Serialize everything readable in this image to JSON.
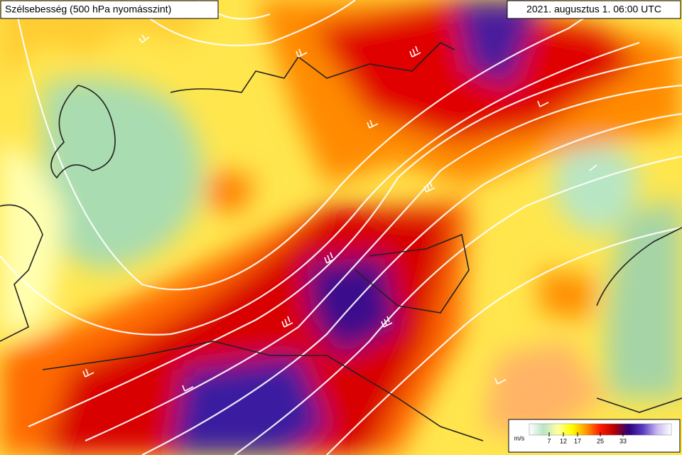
{
  "title": "Szélsebesség (500 hPa nyomásszint)",
  "timestamp": "2021. augusztus 1. 06:00 UTC",
  "legend": {
    "unit": "m/s",
    "lim": [
      0,
      50
    ],
    "ticks": [
      7,
      12,
      17,
      25,
      33
    ],
    "colors": [
      "#ffffff",
      "#b8e6c4",
      "#ffffa0",
      "#ffff00",
      "#ff9900",
      "#ff1a00",
      "#b30000",
      "#2a007a",
      "#5a3bc4",
      "#c9b8f0",
      "#ffffff"
    ]
  }
}
